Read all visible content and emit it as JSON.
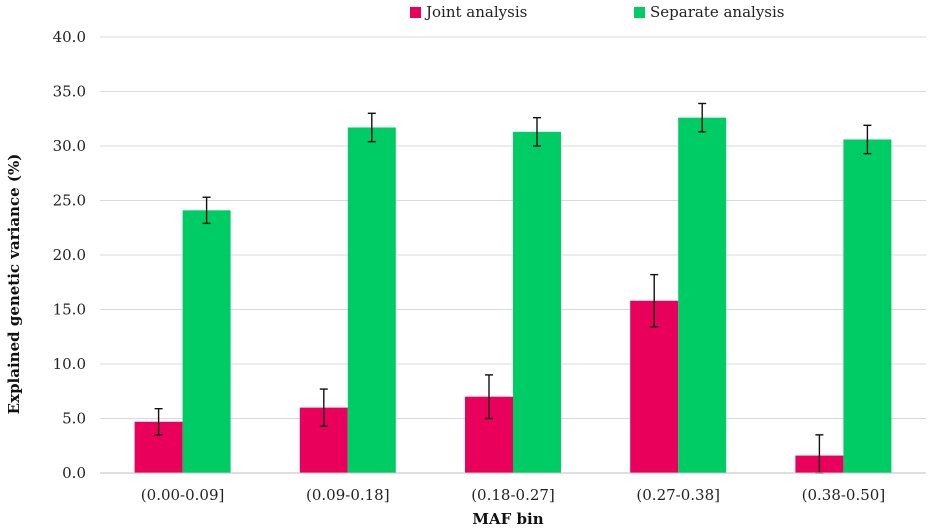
{
  "chart_data": {
    "type": "bar",
    "title": "",
    "xlabel": "MAF bin",
    "ylabel": "Explained genetic variance (%)",
    "ylim": [
      0,
      40
    ],
    "yticks": [
      "0.0",
      "5.0",
      "10.0",
      "15.0",
      "20.0",
      "25.0",
      "30.0",
      "35.0",
      "40.0"
    ],
    "ytick_values": [
      0,
      5,
      10,
      15,
      20,
      25,
      30,
      35,
      40
    ],
    "grid": true,
    "legend_position": "top",
    "categories": [
      "(0.00-0.09]",
      "(0.09-0.18]",
      "(0.18-0.27]",
      "(0.27-0.38]",
      "(0.38-0.50]"
    ],
    "series": [
      {
        "name": "Joint analysis",
        "color": "#E8005A",
        "values": [
          4.7,
          6.0,
          7.0,
          15.8,
          1.6
        ],
        "error": [
          1.2,
          1.7,
          2.0,
          2.4,
          1.9
        ]
      },
      {
        "name": "Separate analysis",
        "color": "#00CC66",
        "values": [
          24.1,
          31.7,
          31.3,
          32.6,
          30.6
        ],
        "error": [
          1.2,
          1.3,
          1.3,
          1.3,
          1.3
        ]
      }
    ]
  }
}
